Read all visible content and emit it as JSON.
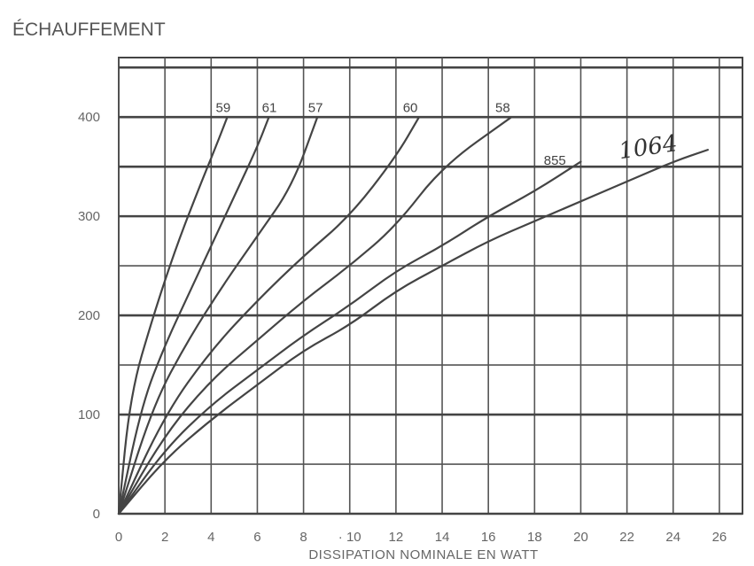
{
  "chart_data": {
    "type": "line",
    "title": "ÉCHAUFFEMENT",
    "xlabel": "DISSIPATION NOMINALE EN WATT",
    "ylabel": "",
    "xlim": [
      0,
      27
    ],
    "ylim": [
      0,
      460
    ],
    "x_ticks": [
      "0",
      "2",
      "4",
      "6",
      "8",
      "· 10",
      "12",
      "14",
      "16",
      "18",
      "20",
      "22",
      "24",
      "26"
    ],
    "y_ticks": [
      "0",
      "100",
      "200",
      "300",
      "400"
    ],
    "grid": true,
    "series": [
      {
        "name": "59",
        "points": [
          [
            0,
            0
          ],
          [
            0.5,
            120
          ],
          [
            1.5,
            200
          ],
          [
            2.5,
            270
          ],
          [
            3.5,
            330
          ],
          [
            4.2,
            370
          ],
          [
            4.7,
            400
          ]
        ]
      },
      {
        "name": "61",
        "points": [
          [
            0,
            0
          ],
          [
            1,
            110
          ],
          [
            2,
            170
          ],
          [
            3,
            220
          ],
          [
            4,
            270
          ],
          [
            5,
            320
          ],
          [
            6,
            370
          ],
          [
            6.5,
            400
          ]
        ]
      },
      {
        "name": "57",
        "points": [
          [
            0,
            0
          ],
          [
            1.5,
            110
          ],
          [
            3,
            175
          ],
          [
            4.5,
            230
          ],
          [
            6,
            280
          ],
          [
            7.5,
            330
          ],
          [
            8.6,
            400
          ]
        ]
      },
      {
        "name": "60",
        "points": [
          [
            0,
            0
          ],
          [
            2,
            100
          ],
          [
            4,
            165
          ],
          [
            6,
            215
          ],
          [
            8,
            260
          ],
          [
            10,
            300
          ],
          [
            12,
            360
          ],
          [
            13,
            400
          ]
        ]
      },
      {
        "name": "58",
        "points": [
          [
            0,
            0
          ],
          [
            2,
            80
          ],
          [
            4,
            135
          ],
          [
            6,
            175
          ],
          [
            8,
            215
          ],
          [
            10,
            250
          ],
          [
            12,
            290
          ],
          [
            14,
            350
          ],
          [
            17,
            400
          ]
        ]
      },
      {
        "name": "855",
        "points": [
          [
            0,
            0
          ],
          [
            2,
            65
          ],
          [
            4,
            110
          ],
          [
            6,
            145
          ],
          [
            8,
            180
          ],
          [
            10,
            210
          ],
          [
            12,
            245
          ],
          [
            14,
            270
          ],
          [
            16,
            300
          ],
          [
            18,
            325
          ],
          [
            20,
            355
          ]
        ]
      },
      {
        "name": "1064",
        "points": [
          [
            0,
            0
          ],
          [
            2,
            55
          ],
          [
            4,
            95
          ],
          [
            6,
            130
          ],
          [
            8,
            165
          ],
          [
            10,
            190
          ],
          [
            12,
            225
          ],
          [
            14,
            250
          ],
          [
            16,
            275
          ],
          [
            18,
            295
          ],
          [
            20,
            315
          ],
          [
            22,
            335
          ],
          [
            24,
            355
          ],
          [
            25.5,
            367
          ]
        ]
      }
    ],
    "curve_labels": [
      {
        "text": "59",
        "x": 4.2,
        "y": 405
      },
      {
        "text": "61",
        "x": 6.2,
        "y": 405
      },
      {
        "text": "57",
        "x": 8.2,
        "y": 405
      },
      {
        "text": "60",
        "x": 12.3,
        "y": 405
      },
      {
        "text": "58",
        "x": 16.3,
        "y": 405
      },
      {
        "text": "855",
        "x": 18.4,
        "y": 352
      }
    ],
    "handwritten_label": {
      "text": "1064",
      "x": 21.7,
      "y": 358
    }
  }
}
